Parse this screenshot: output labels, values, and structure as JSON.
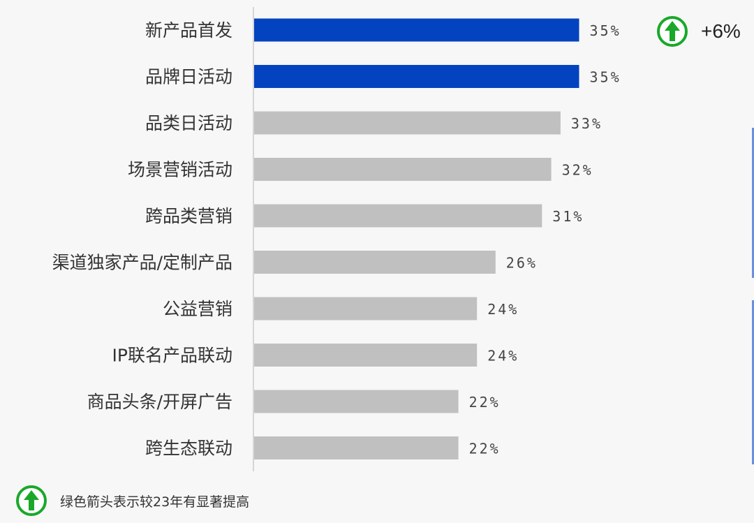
{
  "chart_data": {
    "type": "bar",
    "orientation": "horizontal",
    "categories": [
      "新产品首发",
      "品牌日活动",
      "品类日活动",
      "场景营销活动",
      "跨品类营销",
      "渠道独家产品/定制产品",
      "公益营销",
      "IP联名产品联动",
      "商品头条/开屏广告",
      "跨生态联动"
    ],
    "values": [
      35,
      35,
      33,
      32,
      31,
      26,
      24,
      24,
      22,
      22
    ],
    "value_labels": [
      "35%",
      "35%",
      "33%",
      "32%",
      "31%",
      "26%",
      "24%",
      "24%",
      "22%",
      "22%"
    ],
    "highlighted": [
      true,
      true,
      false,
      false,
      false,
      false,
      false,
      false,
      false,
      false
    ],
    "colors": {
      "highlight": "#0443c0",
      "default": "#c0c0c0"
    },
    "xlim": [
      0,
      40
    ],
    "grid": false,
    "title": "",
    "xlabel": "",
    "ylabel": ""
  },
  "badge": {
    "text": "+6%",
    "icon": "up-arrow-circle-icon",
    "color": "#1aa82a"
  },
  "legend": {
    "text": "绿色箭头表示较23年有显著提高",
    "icon": "up-arrow-circle-icon",
    "color": "#1aa82a"
  }
}
